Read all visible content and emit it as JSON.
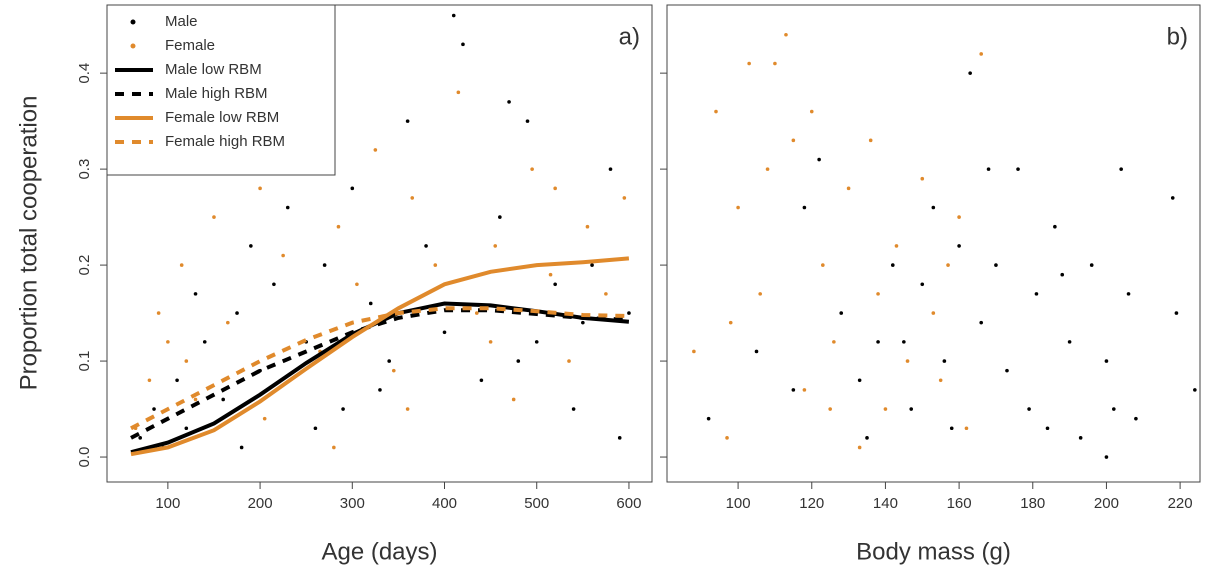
{
  "chart_data": [
    {
      "type": "scatter",
      "panel_label": "a)",
      "y_label": "Proportion total cooperation",
      "x_label": "Age (days)",
      "xlim": [
        34,
        625
      ],
      "ylim": [
        -0.026,
        0.471
      ],
      "xticks": [
        100,
        200,
        300,
        400,
        500,
        600
      ],
      "yticks": [
        {
          "value": 0,
          "label": "0.0"
        },
        0.1,
        0.2,
        0.3,
        0.4
      ],
      "show_ytick_labels": true,
      "legend": "top-left",
      "series": [
        {
          "name": "Male",
          "color": "#000000",
          "mode": "points",
          "x": [
            70,
            85,
            95,
            110,
            120,
            140,
            160,
            175,
            190,
            200,
            215,
            230,
            250,
            270,
            290,
            300,
            320,
            340,
            360,
            380,
            400,
            410,
            420,
            440,
            460,
            470,
            490,
            500,
            520,
            540,
            560,
            580,
            590,
            600,
            330,
            260,
            180,
            130,
            480,
            550
          ],
          "values": [
            0.02,
            0.05,
            0.01,
            0.08,
            0.03,
            0.12,
            0.06,
            0.15,
            0.22,
            0.09,
            0.18,
            0.26,
            0.12,
            0.2,
            0.05,
            0.28,
            0.16,
            0.1,
            0.35,
            0.22,
            0.13,
            0.46,
            0.43,
            0.08,
            0.25,
            0.37,
            0.35,
            0.12,
            0.18,
            0.05,
            0.2,
            0.3,
            0.02,
            0.15,
            0.07,
            0.03,
            0.01,
            0.17,
            0.1,
            0.14
          ]
        },
        {
          "name": "Female",
          "color": "#e08a2c",
          "mode": "points",
          "x": [
            65,
            80,
            100,
            115,
            130,
            150,
            165,
            185,
            205,
            225,
            240,
            265,
            285,
            305,
            325,
            345,
            365,
            390,
            415,
            435,
            455,
            475,
            495,
            515,
            535,
            555,
            575,
            595,
            120,
            200,
            280,
            360,
            450,
            520,
            90
          ],
          "values": [
            0.03,
            0.08,
            0.12,
            0.2,
            0.06,
            0.25,
            0.14,
            0.3,
            0.04,
            0.21,
            0.33,
            0.11,
            0.24,
            0.18,
            0.32,
            0.09,
            0.27,
            0.2,
            0.38,
            0.15,
            0.22,
            0.06,
            0.3,
            0.19,
            0.1,
            0.24,
            0.17,
            0.27,
            0.1,
            0.28,
            0.01,
            0.05,
            0.12,
            0.28,
            0.15
          ]
        },
        {
          "name": "Male low RBM",
          "color": "#000000",
          "mode": "line",
          "dash": false,
          "x": [
            60,
            100,
            150,
            200,
            250,
            300,
            350,
            400,
            450,
            500,
            550,
            600
          ],
          "values": [
            0.005,
            0.015,
            0.035,
            0.065,
            0.098,
            0.128,
            0.15,
            0.16,
            0.158,
            0.152,
            0.145,
            0.141
          ]
        },
        {
          "name": "Male high RBM",
          "color": "#000000",
          "mode": "line",
          "dash": true,
          "x": [
            60,
            100,
            150,
            200,
            250,
            300,
            350,
            400,
            450,
            500,
            550,
            600
          ],
          "values": [
            0.02,
            0.04,
            0.065,
            0.09,
            0.11,
            0.13,
            0.145,
            0.153,
            0.153,
            0.149,
            0.145,
            0.143
          ]
        },
        {
          "name": "Female low RBM",
          "color": "#e08a2c",
          "mode": "line",
          "dash": false,
          "x": [
            60,
            100,
            150,
            200,
            250,
            300,
            350,
            400,
            450,
            500,
            550,
            600
          ],
          "values": [
            0.003,
            0.01,
            0.028,
            0.058,
            0.092,
            0.125,
            0.155,
            0.18,
            0.193,
            0.2,
            0.203,
            0.207
          ]
        },
        {
          "name": "Female high RBM",
          "color": "#e08a2c",
          "mode": "line",
          "dash": true,
          "x": [
            60,
            100,
            150,
            200,
            250,
            300,
            350,
            400,
            450,
            500,
            550,
            600
          ],
          "values": [
            0.03,
            0.05,
            0.075,
            0.1,
            0.122,
            0.14,
            0.15,
            0.155,
            0.155,
            0.152,
            0.148,
            0.147
          ]
        }
      ]
    },
    {
      "type": "scatter",
      "panel_label": "b)",
      "x_label": "Body mass (g)",
      "xlim": [
        80.7,
        225.4
      ],
      "ylim": [
        -0.026,
        0.471
      ],
      "xticks": [
        100,
        120,
        140,
        160,
        180,
        200,
        220
      ],
      "yticks": [
        0,
        0.1,
        0.2,
        0.3,
        0.4
      ],
      "show_ytick_labels": false,
      "series": [
        {
          "color": "#000000",
          "mode": "points",
          "x": [
            92,
            105,
            115,
            118,
            122,
            128,
            133,
            138,
            142,
            147,
            150,
            153,
            156,
            158,
            160,
            163,
            166,
            170,
            173,
            176,
            179,
            181,
            184,
            186,
            188,
            190,
            193,
            196,
            200,
            200,
            202,
            204,
            206,
            208,
            218,
            219,
            224,
            145,
            135,
            168
          ],
          "values": [
            0.04,
            0.11,
            0.07,
            0.26,
            0.31,
            0.15,
            0.08,
            0.12,
            0.2,
            0.05,
            0.18,
            0.26,
            0.1,
            0.03,
            0.22,
            0.4,
            0.14,
            0.2,
            0.09,
            0.3,
            0.05,
            0.17,
            0.03,
            0.24,
            0.19,
            0.12,
            0.02,
            0.2,
            0.1,
            0,
            0.05,
            0.3,
            0.17,
            0.04,
            0.27,
            0.15,
            0.07,
            0.12,
            0.02,
            0.3
          ]
        },
        {
          "color": "#e08a2c",
          "mode": "points",
          "x": [
            88,
            94,
            97,
            100,
            103,
            106,
            110,
            113,
            115,
            118,
            120,
            123,
            126,
            130,
            133,
            136,
            138,
            140,
            143,
            146,
            150,
            153,
            155,
            157,
            160,
            162,
            166,
            98,
            108,
            125
          ],
          "values": [
            0.11,
            0.36,
            0.02,
            0.26,
            0.41,
            0.17,
            0.41,
            0.44,
            0.33,
            0.07,
            0.36,
            0.2,
            0.12,
            0.28,
            0.01,
            0.33,
            0.17,
            0.05,
            0.22,
            0.1,
            0.29,
            0.15,
            0.08,
            0.2,
            0.25,
            0.03,
            0.42,
            0.14,
            0.3,
            0.05
          ]
        }
      ]
    }
  ]
}
